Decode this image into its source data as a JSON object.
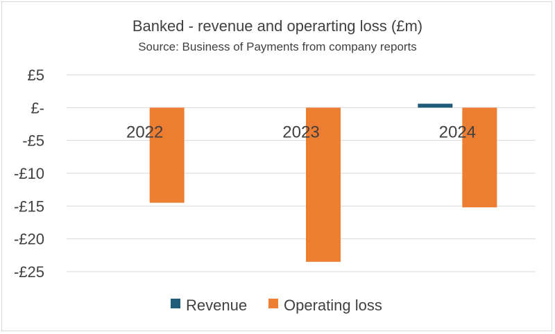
{
  "colors": {
    "revenue": "#1f5c7a",
    "operating_loss": "#ed7d31"
  },
  "chart_data": {
    "type": "bar",
    "title": "Banked - revenue and operarting loss (£m)",
    "subtitle": "Source: Business of Payments from company reports",
    "categories": [
      "2022",
      "2023",
      "2024"
    ],
    "series": [
      {
        "name": "Revenue",
        "values": [
          0,
          0,
          0.6
        ]
      },
      {
        "name": "Operating loss",
        "values": [
          -14.5,
          -23.5,
          -15.2
        ]
      }
    ],
    "ylim": [
      -25,
      5
    ],
    "yticks": [
      5,
      0,
      -5,
      -10,
      -15,
      -20,
      -25
    ],
    "ytick_labels": [
      "£5",
      "£-",
      "-£5",
      "-£10",
      "-£15",
      "-£20",
      "-£25"
    ],
    "grid": true,
    "legend": "bottom"
  }
}
